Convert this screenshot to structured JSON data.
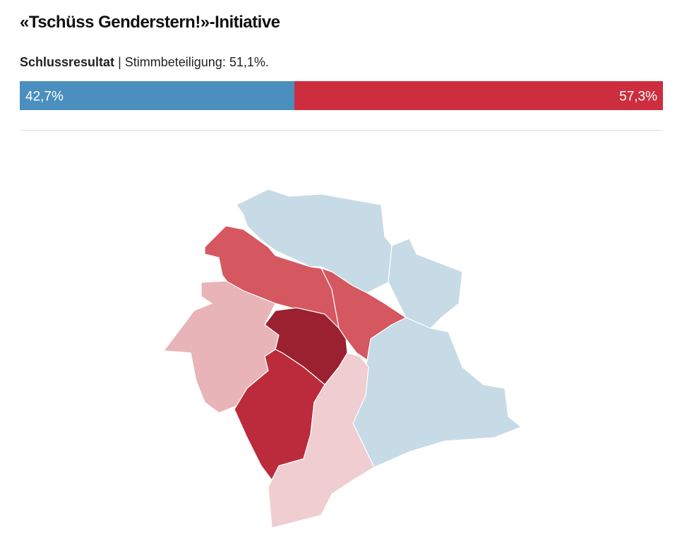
{
  "header": {
    "title": "«Tschüss Genderstern!»-Initiative"
  },
  "summary": {
    "label": "Schlussresultat",
    "details": "| Stimmbeteiligung: 51,1%."
  },
  "results": [
    {
      "value": 42.7,
      "label": "42,7%",
      "color": "#4a8fbd"
    },
    {
      "value": 57.3,
      "label": "57,3%",
      "color": "#cc2e40"
    }
  ]
}
